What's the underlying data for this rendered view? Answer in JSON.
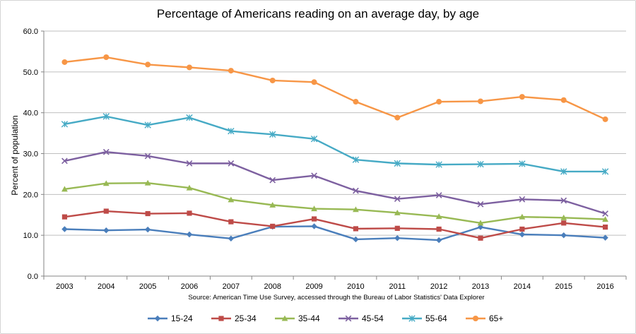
{
  "chart_data": {
    "type": "line",
    "title": "Percentage of Americans reading on an average day, by age",
    "xlabel": "",
    "ylabel": "Percent of population",
    "source_note": "Source: American Time Use Survey, accessed through the Bureau of Labor Statistics' Data Explorer",
    "categories": [
      "2003",
      "2004",
      "2005",
      "2006",
      "2007",
      "2008",
      "2009",
      "2010",
      "2011",
      "2012",
      "2013",
      "2014",
      "2015",
      "2016"
    ],
    "ylim": [
      0,
      60
    ],
    "yticks": [
      "0.0",
      "10.0",
      "20.0",
      "30.0",
      "40.0",
      "50.0",
      "60.0"
    ],
    "grid": true,
    "legend_position": "bottom",
    "series": [
      {
        "name": "15-24",
        "color": "#4a7ebb",
        "marker": "diamond",
        "values": [
          11.5,
          11.2,
          11.4,
          10.2,
          9.2,
          12.1,
          12.2,
          9.0,
          9.3,
          8.8,
          12.0,
          10.2,
          10.0,
          9.4
        ]
      },
      {
        "name": "25-34",
        "color": "#be4b48",
        "marker": "square",
        "values": [
          14.5,
          15.9,
          15.3,
          15.4,
          13.3,
          12.2,
          14.0,
          11.6,
          11.7,
          11.5,
          9.3,
          11.5,
          13.0,
          12.0
        ]
      },
      {
        "name": "35-44",
        "color": "#98b954",
        "marker": "triangle",
        "values": [
          21.3,
          22.7,
          22.8,
          21.6,
          18.7,
          17.4,
          16.5,
          16.3,
          15.5,
          14.6,
          13.0,
          14.5,
          14.3,
          13.9
        ]
      },
      {
        "name": "45-54",
        "color": "#7d60a0",
        "marker": "x",
        "values": [
          28.2,
          30.4,
          29.4,
          27.6,
          27.6,
          23.5,
          24.6,
          20.9,
          18.9,
          19.8,
          17.6,
          18.8,
          18.5,
          15.3
        ]
      },
      {
        "name": "55-64",
        "color": "#46aac5",
        "marker": "star",
        "values": [
          37.2,
          39.1,
          37.0,
          38.8,
          35.5,
          34.7,
          33.6,
          28.5,
          27.6,
          27.3,
          27.4,
          27.5,
          25.6,
          25.6
        ]
      },
      {
        "name": "65+",
        "color": "#f79646",
        "marker": "circle",
        "values": [
          52.4,
          53.6,
          51.8,
          51.1,
          50.3,
          47.9,
          47.5,
          42.7,
          38.8,
          42.7,
          42.8,
          43.9,
          43.1,
          38.4
        ]
      }
    ]
  }
}
